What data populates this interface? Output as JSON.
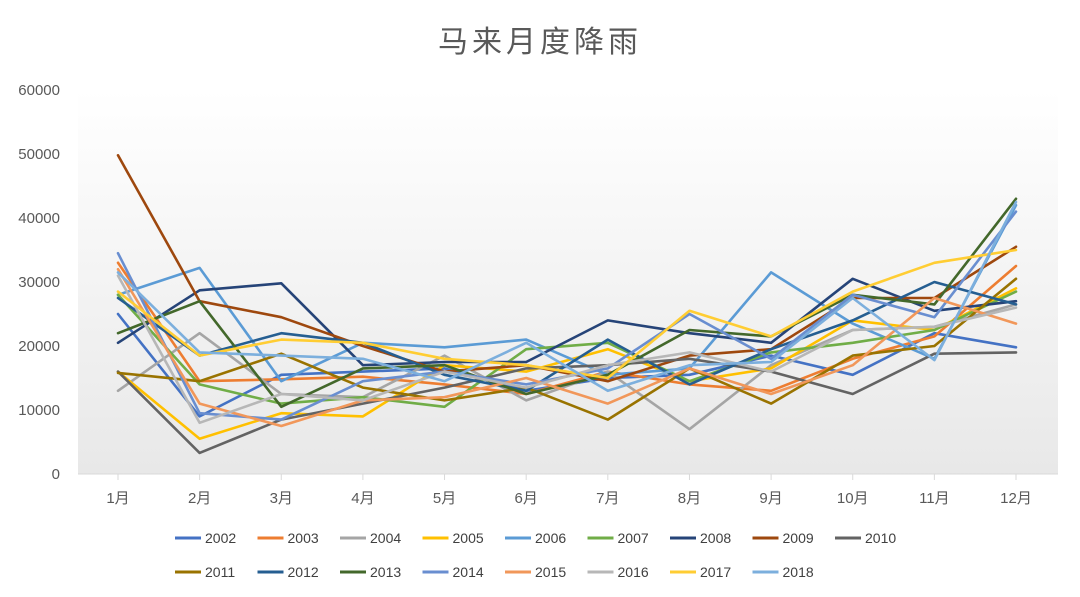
{
  "chart_data": {
    "type": "line",
    "title": "马来月度降雨",
    "xlabel": "",
    "ylabel": "",
    "categories": [
      "1月",
      "2月",
      "3月",
      "4月",
      "5月",
      "6月",
      "7月",
      "8月",
      "9月",
      "10月",
      "11月",
      "12月"
    ],
    "y_ticks": [
      "0",
      "10000",
      "20000",
      "30000",
      "40000",
      "50000",
      "60000"
    ],
    "ylim": [
      0,
      60000
    ],
    "grid": false,
    "legend_position": "bottom",
    "series": [
      {
        "name": "2002",
        "color": "#4472C4",
        "values": [
          25000,
          9000,
          15500,
          16000,
          16500,
          13000,
          15000,
          15500,
          18500,
          15500,
          22000,
          19800
        ]
      },
      {
        "name": "2003",
        "color": "#ED7D31",
        "values": [
          33000,
          14500,
          14800,
          15200,
          14000,
          12500,
          16000,
          14000,
          13000,
          18000,
          21500,
          32500
        ]
      },
      {
        "name": "2004",
        "color": "#A5A5A5",
        "values": [
          13000,
          22000,
          12500,
          12000,
          18500,
          11500,
          16000,
          7000,
          17000,
          22500,
          23000,
          26500
        ]
      },
      {
        "name": "2005",
        "color": "#FFC000",
        "values": [
          16000,
          5500,
          9500,
          9000,
          17000,
          16000,
          19500,
          14500,
          16500,
          24000,
          22500,
          29000
        ]
      },
      {
        "name": "2006",
        "color": "#5B9BD5",
        "values": [
          28000,
          32200,
          14500,
          20500,
          19800,
          21000,
          15500,
          16500,
          31500,
          23500,
          18000,
          42000
        ]
      },
      {
        "name": "2007",
        "color": "#70AD47",
        "values": [
          28000,
          14000,
          11000,
          12000,
          10500,
          19500,
          20500,
          14500,
          19000,
          20500,
          22500,
          28500
        ]
      },
      {
        "name": "2008",
        "color": "#264478",
        "values": [
          20500,
          28700,
          29800,
          17000,
          17500,
          17500,
          24000,
          22000,
          20500,
          30500,
          25500,
          27000
        ]
      },
      {
        "name": "2009",
        "color": "#9E480E",
        "values": [
          49800,
          27000,
          24500,
          20000,
          16000,
          17000,
          14500,
          18500,
          19500,
          27500,
          27500,
          35500
        ]
      },
      {
        "name": "2010",
        "color": "#636363",
        "values": [
          16000,
          3300,
          8500,
          11000,
          13500,
          16500,
          17000,
          18000,
          16000,
          12500,
          18800,
          19000
        ]
      },
      {
        "name": "2011",
        "color": "#997300",
        "values": [
          15800,
          14500,
          18800,
          13500,
          11500,
          13500,
          8500,
          16500,
          11000,
          18500,
          20000,
          30500
        ]
      },
      {
        "name": "2012",
        "color": "#255E91",
        "values": [
          27500,
          18500,
          22000,
          20500,
          15500,
          13000,
          21000,
          14000,
          19500,
          24000,
          30000,
          26500
        ]
      },
      {
        "name": "2013",
        "color": "#43682B",
        "values": [
          22000,
          27000,
          10500,
          16500,
          17000,
          12500,
          15500,
          22500,
          21500,
          28000,
          26500,
          43000
        ]
      },
      {
        "name": "2014",
        "color": "#698ED0",
        "values": [
          34500,
          9500,
          8500,
          14500,
          16000,
          14000,
          16500,
          25000,
          18000,
          28000,
          24500,
          41000
        ]
      },
      {
        "name": "2015",
        "color": "#F1975A",
        "values": [
          32000,
          11000,
          7500,
          11500,
          12000,
          15000,
          11000,
          16500,
          12500,
          17000,
          27500,
          23500
        ]
      },
      {
        "name": "2016",
        "color": "#B7B7B7",
        "values": [
          31000,
          8000,
          12500,
          11500,
          16000,
          13500,
          17000,
          19000,
          16000,
          22500,
          23000,
          26000
        ]
      },
      {
        "name": "2017",
        "color": "#FFCD33",
        "values": [
          28500,
          18500,
          21000,
          20500,
          18000,
          17000,
          15000,
          25500,
          21500,
          28500,
          33000,
          35000
        ]
      },
      {
        "name": "2018",
        "color": "#7CAFDD",
        "values": [
          31500,
          19000,
          18500,
          18000,
          14500,
          20500,
          13000,
          17000,
          17500,
          27500,
          17800,
          42500
        ]
      }
    ]
  }
}
